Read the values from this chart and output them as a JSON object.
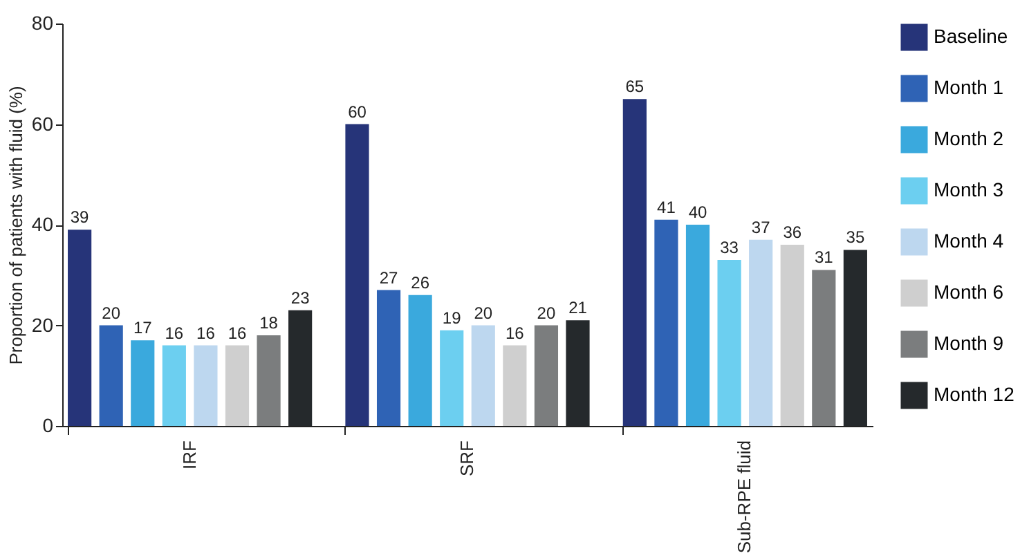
{
  "chart_data": {
    "type": "bar",
    "ylabel": "Proportion of patients with fluid (%)",
    "categories": [
      "IRF",
      "SRF",
      "Sub-RPE fluid"
    ],
    "series": [
      {
        "name": "Baseline",
        "color": "#263479",
        "values": [
          39,
          60,
          65
        ]
      },
      {
        "name": "Month 1",
        "color": "#2f63b5",
        "values": [
          20,
          27,
          41
        ]
      },
      {
        "name": "Month 2",
        "color": "#3aa9dd",
        "values": [
          17,
          26,
          40
        ]
      },
      {
        "name": "Month 3",
        "color": "#6ccff0",
        "values": [
          16,
          19,
          33
        ]
      },
      {
        "name": "Month 4",
        "color": "#bdd7ef",
        "values": [
          16,
          20,
          37
        ]
      },
      {
        "name": "Month 6",
        "color": "#cfcfcf",
        "values": [
          16,
          16,
          36
        ]
      },
      {
        "name": "Month 9",
        "color": "#7b7d7e",
        "values": [
          18,
          20,
          31
        ]
      },
      {
        "name": "Month 12",
        "color": "#25292c",
        "values": [
          23,
          21,
          35
        ]
      }
    ],
    "ylim": [
      0,
      80
    ],
    "yticks": [
      0,
      20,
      40,
      60,
      80
    ],
    "grid": false,
    "legend": "right",
    "data_labels": true
  }
}
